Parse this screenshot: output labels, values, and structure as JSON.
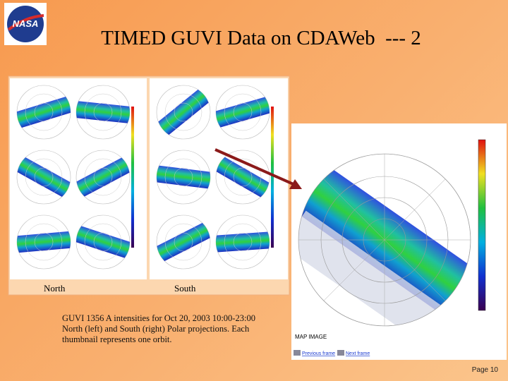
{
  "header": {
    "title": "TIMED GUVI Data on CDAWeb  --- 2",
    "logo": "NASA"
  },
  "figure": {
    "left_labels": [
      "North",
      "South"
    ],
    "map_image": "MAP IMAGE",
    "previous": "Previous frame",
    "next": "Next frame"
  },
  "caption": "GUVI 1356 A intensities for Oct 20, 2003 10:00-23:00 North (left) and South (right) Polar projections. Each thumbnail represents one orbit.",
  "footer": {
    "page": "Page 10"
  }
}
